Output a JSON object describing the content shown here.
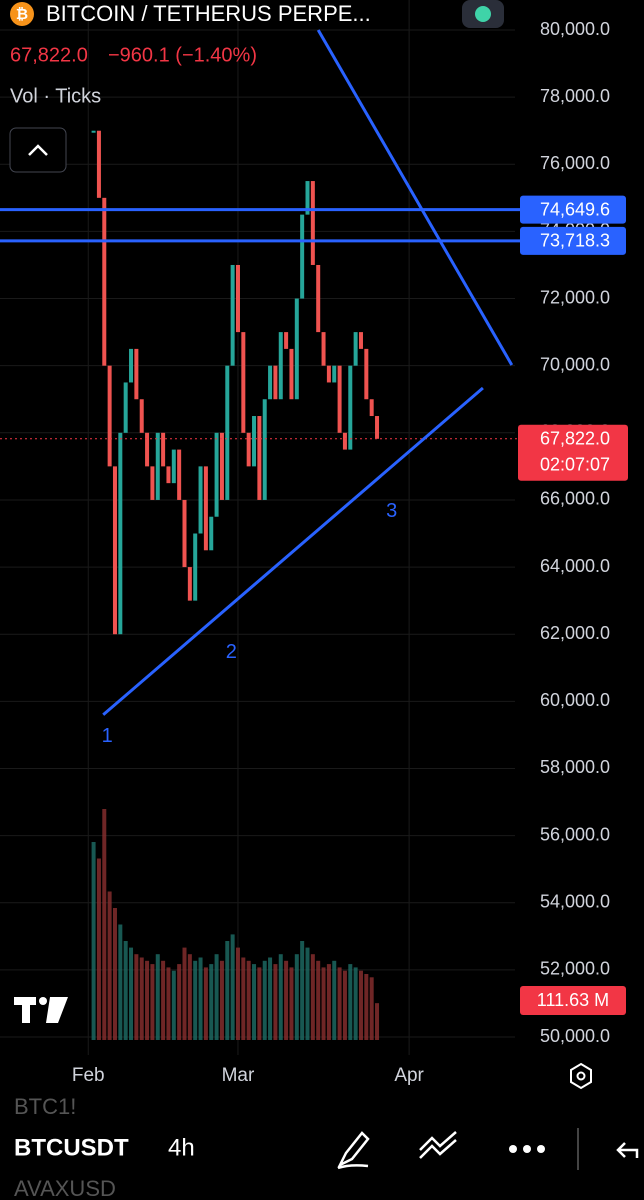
{
  "header": {
    "title": "BITCOIN / TETHERUS PERPE...",
    "price": "67,822.0",
    "change": "−960.1 (−1.40%)",
    "indicators": "Vol · Ticks"
  },
  "chart_data": {
    "type": "candlestick",
    "x": [
      33,
      34,
      35,
      36,
      37,
      38,
      39,
      40,
      41,
      42,
      43,
      44,
      45,
      46,
      47,
      48,
      49,
      50,
      51,
      52,
      53,
      54,
      55,
      56,
      57,
      58,
      59,
      60,
      61,
      62,
      63,
      64,
      65,
      66,
      67,
      68,
      69,
      70,
      71,
      72,
      73,
      74,
      75,
      76,
      77,
      78,
      79,
      80,
      81,
      82,
      83,
      84,
      85,
      86
    ],
    "series": [
      {
        "name": "BTCUSDT",
        "values": [
          77000,
          75000,
          70000,
          67000,
          62000,
          68000,
          69500,
          70500,
          69000,
          68000,
          67000,
          66000,
          68000,
          67000,
          66500,
          67500,
          66000,
          64000,
          63000,
          65000,
          67000,
          64500,
          65500,
          68000,
          66000,
          70000,
          73000,
          71000,
          68000,
          67000,
          68500,
          66000,
          69000,
          70000,
          69000,
          71000,
          70500,
          69000,
          72000,
          74500,
          75500,
          73000,
          71000,
          70000,
          69500,
          70000,
          68000,
          67500,
          70000,
          71000,
          70500,
          69000,
          68500,
          67822
        ]
      },
      {
        "name": "Vol",
        "values": [
          600,
          550,
          700,
          450,
          400,
          350,
          300,
          280,
          260,
          250,
          240,
          230,
          260,
          240,
          220,
          210,
          230,
          280,
          260,
          240,
          250,
          220,
          230,
          260,
          240,
          300,
          320,
          280,
          250,
          240,
          230,
          220,
          240,
          250,
          230,
          260,
          240,
          220,
          260,
          300,
          280,
          260,
          240,
          220,
          230,
          240,
          220,
          210,
          230,
          220,
          210,
          200,
          190,
          111.63
        ],
        "value_labels": [
          null,
          null,
          null,
          null,
          null,
          null,
          null,
          null,
          null,
          null,
          null,
          null,
          null,
          null,
          null,
          null,
          null,
          null,
          null,
          null,
          null,
          null,
          null,
          null,
          null,
          null,
          null,
          null,
          null,
          null,
          null,
          null,
          null,
          null,
          null,
          null,
          null,
          null,
          null,
          null,
          null,
          null,
          null,
          null,
          null,
          null,
          null,
          null,
          null,
          null,
          null,
          null,
          null,
          "111.63 M"
        ]
      }
    ],
    "xlim": [
      15.5,
      111.8
    ],
    "xticks": [
      {
        "value": 32,
        "label": "Feb"
      },
      {
        "value": 60,
        "label": "Mar"
      },
      {
        "value": 92,
        "label": "Apr"
      }
    ],
    "ylim": [
      49464,
      80894
    ],
    "yticks": [
      {
        "value": 80000,
        "label": "80,000.0"
      },
      {
        "value": 78000,
        "label": "78,000.0"
      },
      {
        "value": 76000,
        "label": "76,000.0"
      },
      {
        "value": 74000,
        "label": "74,000.0"
      },
      {
        "value": 72000,
        "label": "72,000.0"
      },
      {
        "value": 70000,
        "label": "70,000.0"
      },
      {
        "value": 68000,
        "label": "68,000.0"
      },
      {
        "value": 66000,
        "label": "66,000.0"
      },
      {
        "value": 64000,
        "label": "64,000.0"
      },
      {
        "value": 62000,
        "label": "62,000.0"
      },
      {
        "value": 60000,
        "label": "60,000.0"
      },
      {
        "value": 58000,
        "label": "58,000.0"
      },
      {
        "value": 56000,
        "label": "56,000.0"
      },
      {
        "value": 54000,
        "label": "54,000.0"
      },
      {
        "value": 52000,
        "label": "52,000.0"
      },
      {
        "value": 50000,
        "label": "50,000.0"
      }
    ],
    "hlines": [
      {
        "value": 74649.6,
        "label": "74,649.6"
      },
      {
        "value": 73718.3,
        "label": "73,718.3"
      }
    ],
    "last_price": {
      "value": 67822,
      "label": "67,822.0"
    },
    "countdown": "02:07:07",
    "trendlines": [
      {
        "x": [
          34.8,
          105.8
        ],
        "y": [
          59600,
          69335
        ]
      },
      {
        "x": [
          75,
          111.2
        ],
        "y": [
          80000,
          70020
        ]
      }
    ],
    "points": [
      {
        "x": 34.8,
        "y": 59600,
        "label": "1"
      },
      {
        "x": 58,
        "y": 62100,
        "label": "2"
      },
      {
        "x": 88,
        "y": 66300,
        "label": "3"
      }
    ]
  },
  "toolbar": {
    "ghost_top": "BTC1!",
    "symbol": "BTCUSDT",
    "interval": "4h",
    "ghost_bottom": "AVAXUSD"
  }
}
